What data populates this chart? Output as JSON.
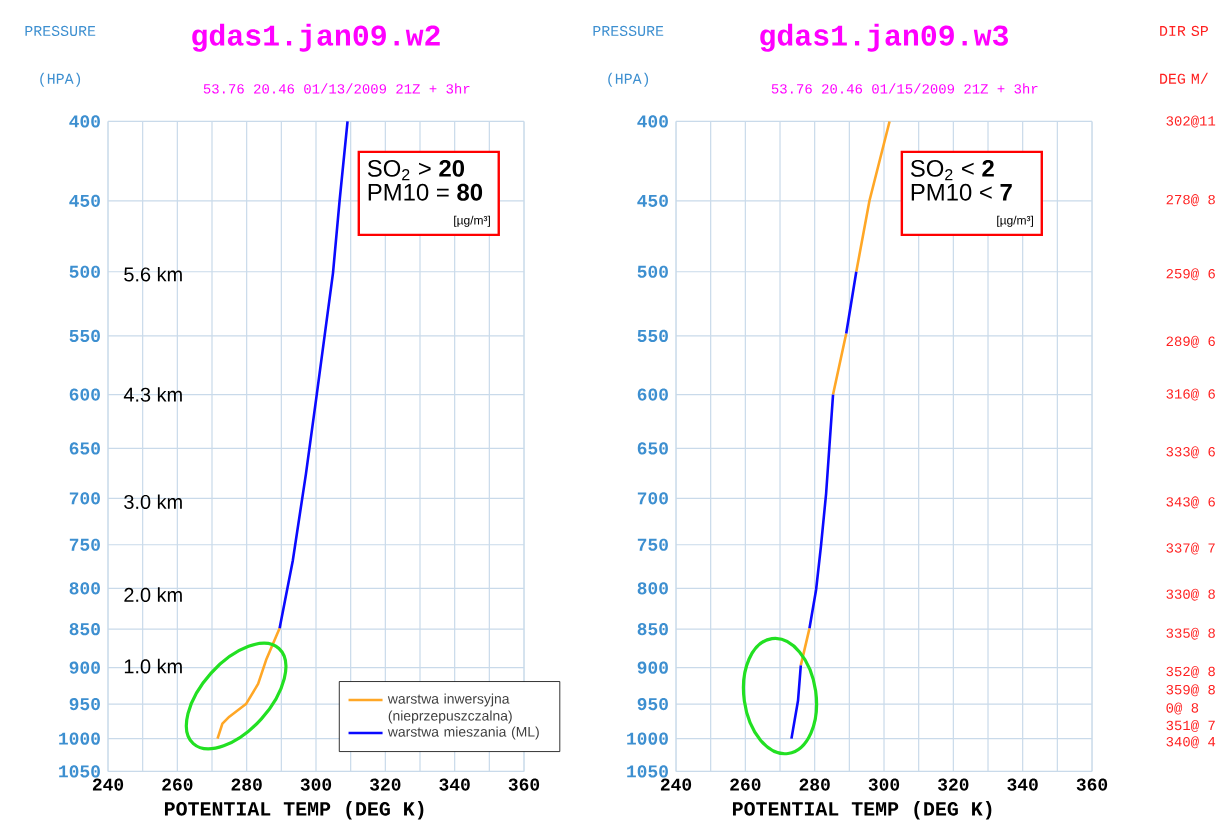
{
  "chart_data": [
    {
      "type": "line",
      "title": "gdas1.jan09.w2",
      "subtitle": "53.76    20.46  01/13/2009 21Z +  3hr",
      "xlabel": "POTENTIAL TEMP (DEG K)",
      "ylabel": "PRESSURE (HPA)",
      "xlim": [
        240,
        360
      ],
      "xticks": [
        240,
        {
          "value": 250,
          "label": null
        },
        260,
        {
          "value": 270,
          "label": null
        },
        280,
        {
          "value": 290,
          "label": null
        },
        300,
        {
          "value": 310,
          "label": null
        },
        320,
        {
          "value": 330,
          "label": null
        },
        340,
        {
          "value": 350,
          "label": null
        },
        360
      ],
      "ylim": [
        1050,
        400
      ],
      "yticks": [
        400,
        450,
        500,
        550,
        600,
        650,
        700,
        750,
        800,
        850,
        900,
        950,
        1000,
        1050
      ],
      "log": "y",
      "grid": true,
      "legend": "bottom right",
      "marker": "none",
      "line_style": "solid",
      "series": [
        {
          "name": "warstwa inwersyjna (nieprzepuszczalna)",
          "color": "#ffa726",
          "x": [
            271.6,
            273,
            275,
            279.8,
            283.3,
            285.6,
            289.5
          ],
          "values": [
            1000,
            978,
            968,
            950,
            922,
            890,
            849
          ]
        },
        {
          "name": "warstwa mieszania (ML)",
          "color": "#0a0aff",
          "x": [
            289.5,
            293.3,
            297.1,
            300,
            304.9,
            306.8,
            309.1
          ],
          "values": [
            849,
            768,
            675,
            605,
            501,
            450,
            400
          ]
        }
      ],
      "annotations": [
        "SO$_{2}$ > **20**",
        "PM10 = **80**",
        "[µg/m³]",
        "5.6 km",
        "4.3 km",
        "3.0 km",
        "2.0 km",
        "1.0 km"
      ]
    },
    {
      "type": "line",
      "title": "gdas1.jan09.w3",
      "subtitle": "53.76    20.46  01/15/2009 21Z +  3hr",
      "xlabel": "POTENTIAL TEMP (DEG K)",
      "ylabel": "PRESSURE (HPA)",
      "y2label": "DIR SP DEG M/",
      "xlim": [
        240,
        360
      ],
      "xticks": [
        240,
        {
          "value": 250,
          "label": null
        },
        260,
        {
          "value": 270,
          "label": null
        },
        280,
        {
          "value": 290,
          "label": null
        },
        300,
        {
          "value": 310,
          "label": null
        },
        320,
        {
          "value": 330,
          "label": null
        },
        340,
        {
          "value": 350,
          "label": null
        },
        360
      ],
      "ylim": [
        1050,
        400
      ],
      "yticks": [
        400,
        450,
        500,
        550,
        600,
        650,
        700,
        750,
        800,
        850,
        900,
        950,
        1000,
        1050
      ],
      "log": "y",
      "grid": true,
      "marker": "none",
      "line_style": "solid",
      "series": [
        {
          "color": "#ffa726",
          "x": [
            301.6,
            295.8,
            292,
            null,
            289.1,
            285.3,
            null,
            278.5,
            276
          ],
          "values": [
            400,
            450,
            500,
            null,
            548,
            600,
            null,
            849,
            897
          ]
        },
        {
          "color": "#0a0aff",
          "x": [
            292,
            289.1,
            null,
            285.3,
            283.3,
            281.8,
            280.4,
            278.5,
            null,
            276,
            275.2,
            273.3
          ],
          "values": [
            500,
            548,
            null,
            600,
            695,
            752,
            802,
            849,
            null,
            897,
            945,
            1000
          ]
        }
      ],
      "annotations": [
        "SO$_{2}$ < **2**",
        "PM10 < **7**",
        "[µg/m³]",
        "302@11",
        "278@ 8",
        "259@ 6",
        "289@ 6",
        "316@ 6",
        "333@ 6",
        "343@ 6",
        "337@ 7",
        "330@ 8",
        "335@ 8",
        "352@ 8",
        "359@ 8",
        "0@ 8",
        "351@ 7",
        "340@ 4"
      ]
    }
  ]
}
